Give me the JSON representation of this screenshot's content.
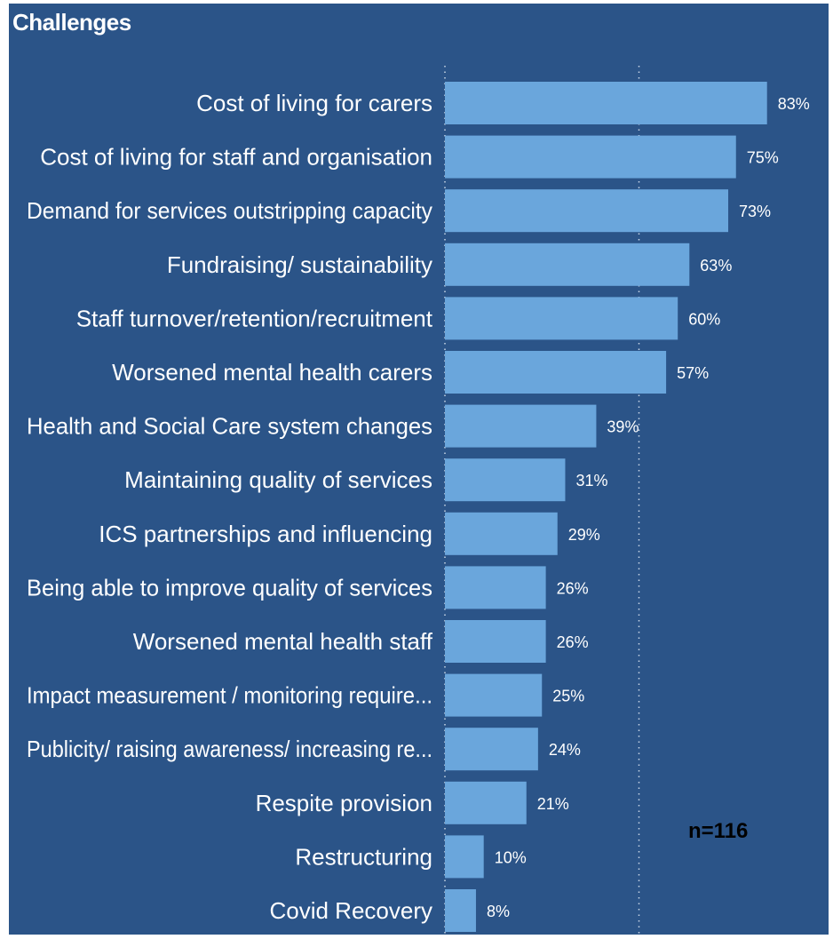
{
  "chart_data": {
    "type": "bar",
    "orientation": "horizontal",
    "title": "Challenges",
    "annotation": "n=116",
    "categories": [
      "Cost of living for carers",
      "Cost of living for staff and organisation",
      "Demand for services outstripping capacity",
      "Fundraising/ sustainability",
      "Staff turnover/retention/recruitment",
      "Worsened mental health carers",
      "Health and Social Care system changes",
      "Maintaining quality of services",
      "ICS partnerships and influencing",
      "Being able to improve quality of services",
      "Worsened mental health staff",
      "Impact measurement / monitoring require...",
      "Publicity/ raising awareness/ increasing re...",
      "Respite provision",
      "Restructuring",
      "Covid Recovery"
    ],
    "values": [
      83,
      75,
      73,
      63,
      60,
      57,
      39,
      31,
      29,
      26,
      26,
      25,
      24,
      21,
      10,
      8
    ],
    "value_labels": [
      "83%",
      "75%",
      "73%",
      "63%",
      "60%",
      "57%",
      "39%",
      "31%",
      "29%",
      "26%",
      "26%",
      "25%",
      "24%",
      "21%",
      "10%",
      "8%"
    ],
    "xlim": [
      0,
      100
    ],
    "grid": true,
    "legend": "none",
    "colors": {
      "background": "#2b5488",
      "bar": "#6aa6dc",
      "text": "#ffffff",
      "annotation": "#000000"
    }
  }
}
